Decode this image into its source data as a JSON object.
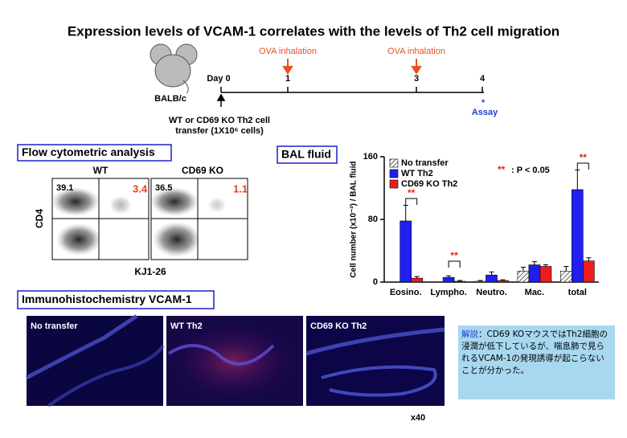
{
  "title": "Expression levels of VCAM-1 correlates with the levels of Th2 cell migration",
  "timeline": {
    "strain": "BALB/c",
    "days": [
      "Day 0",
      "1",
      "3",
      "4"
    ],
    "events": [
      "OVA inhalation",
      "OVA inhalation"
    ],
    "assay_mark": "*",
    "assay": "Assay",
    "transfer": [
      "WT or CD69 KO Th2 cell",
      "transfer (1X10⁶ cells)"
    ]
  },
  "flow": {
    "heading": "Flow cytometric analysis",
    "panels": [
      {
        "label": "WT",
        "upper_left": 39.1,
        "upper_right": 3.4
      },
      {
        "label": "CD69 KO",
        "upper_left": 36.5,
        "upper_right": 1.1
      }
    ],
    "y_label": "CD4",
    "x_label": "KJ1-26"
  },
  "bal_heading": "BAL fluid",
  "chart_data": {
    "type": "bar",
    "y_label": "Cell number (x10⁻³) / BAL fluid",
    "categories": [
      "Eosino.",
      "Lympho.",
      "Neutro.",
      "Mac.",
      "total"
    ],
    "series": [
      {
        "name": "No transfer",
        "color": "#ffffff",
        "values": [
          0,
          0,
          1,
          14,
          14
        ],
        "errors": [
          0,
          0,
          1,
          5,
          6
        ]
      },
      {
        "name": "WT Th2",
        "color": "#1f1ff0",
        "values": [
          78,
          6,
          9,
          22,
          118
        ],
        "errors": [
          20,
          2,
          4,
          4,
          25
        ]
      },
      {
        "name": "CD69 KO Th2",
        "color": "#ee1c1c",
        "values": [
          5,
          1,
          2,
          20,
          27
        ],
        "errors": [
          2,
          1,
          1,
          2,
          4
        ]
      }
    ],
    "ylim": [
      0,
      160
    ],
    "yticks": [
      0,
      80,
      160
    ],
    "annotations": [
      "**",
      "**",
      "**"
    ],
    "significance_mark": "**",
    "significance_text": ": P < 0.05"
  },
  "ihc": {
    "heading": "Immunohistochemistry VCAM-1",
    "panels": [
      "No transfer",
      "WT Th2",
      "CD69 KO Th2"
    ],
    "magnification": "x40"
  },
  "note": {
    "label": "解説",
    "text": "：CD69 KOマウスではTh2細胞の浸潤が低下しているが、喘息肺で見られるVCAM-1の発現誘導が起こらないことが分かった。"
  }
}
